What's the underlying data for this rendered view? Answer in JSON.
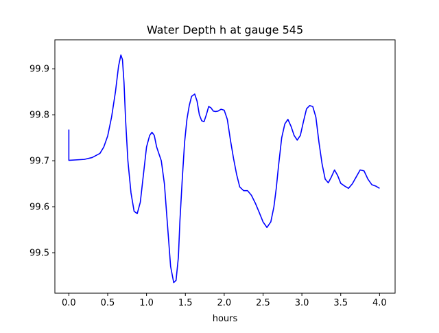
{
  "chart_data": {
    "type": "line",
    "title": "Water Depth h at gauge 545",
    "xlabel": "hours",
    "ylabel": "",
    "xlim": [
      -0.18,
      4.2
    ],
    "ylim": [
      99.412,
      99.963
    ],
    "x_ticks": [
      0.0,
      0.5,
      1.0,
      1.5,
      2.0,
      2.5,
      3.0,
      3.5,
      4.0
    ],
    "x_tick_labels": [
      "0.0",
      "0.5",
      "1.0",
      "1.5",
      "2.0",
      "2.5",
      "3.0",
      "3.5",
      "4.0"
    ],
    "y_ticks": [
      99.5,
      99.6,
      99.7,
      99.8,
      99.9
    ],
    "y_tick_labels": [
      "99.5",
      "99.6",
      "99.7",
      "99.8",
      "99.9"
    ],
    "grid": false,
    "legend": "none",
    "series": [
      {
        "color": "#0000ff",
        "x": [
          0.0,
          0.0,
          0.01,
          0.2,
          0.3,
          0.4,
          0.45,
          0.5,
          0.55,
          0.6,
          0.64,
          0.67,
          0.69,
          0.71,
          0.73,
          0.76,
          0.8,
          0.84,
          0.88,
          0.92,
          0.96,
          1.0,
          1.04,
          1.07,
          1.1,
          1.13,
          1.16,
          1.19,
          1.23,
          1.27,
          1.31,
          1.35,
          1.38,
          1.41,
          1.43,
          1.46,
          1.49,
          1.52,
          1.55,
          1.58,
          1.62,
          1.65,
          1.68,
          1.71,
          1.74,
          1.77,
          1.8,
          1.83,
          1.86,
          1.89,
          1.92,
          1.96,
          2.0,
          2.04,
          2.08,
          2.12,
          2.16,
          2.2,
          2.25,
          2.3,
          2.35,
          2.4,
          2.45,
          2.5,
          2.55,
          2.6,
          2.64,
          2.67,
          2.7,
          2.74,
          2.78,
          2.82,
          2.86,
          2.9,
          2.94,
          2.98,
          3.02,
          3.06,
          3.1,
          3.14,
          3.18,
          3.22,
          3.26,
          3.3,
          3.34,
          3.38,
          3.42,
          3.46,
          3.5,
          3.55,
          3.6,
          3.65,
          3.7,
          3.75,
          3.8,
          3.85,
          3.9,
          3.95,
          4.0
        ],
        "y": [
          99.768,
          99.701,
          99.701,
          99.703,
          99.707,
          99.716,
          99.73,
          99.754,
          99.795,
          99.85,
          99.906,
          99.93,
          99.92,
          99.87,
          99.79,
          99.7,
          99.63,
          99.59,
          99.585,
          99.61,
          99.67,
          99.73,
          99.755,
          99.762,
          99.755,
          99.73,
          99.715,
          99.7,
          99.65,
          99.56,
          99.47,
          99.435,
          99.44,
          99.49,
          99.57,
          99.66,
          99.74,
          99.79,
          99.82,
          99.84,
          99.845,
          99.83,
          99.8,
          99.787,
          99.785,
          99.8,
          99.818,
          99.815,
          99.808,
          99.807,
          99.808,
          99.812,
          99.81,
          99.79,
          99.745,
          99.705,
          99.67,
          99.643,
          99.635,
          99.635,
          99.625,
          99.608,
          99.588,
          99.567,
          99.555,
          99.567,
          99.6,
          99.64,
          99.69,
          99.75,
          99.78,
          99.79,
          99.775,
          99.755,
          99.745,
          99.755,
          99.785,
          99.813,
          99.82,
          99.818,
          99.795,
          99.74,
          99.693,
          99.66,
          99.652,
          99.665,
          99.68,
          99.668,
          99.651,
          99.645,
          99.64,
          99.65,
          99.665,
          99.68,
          99.678,
          99.66,
          99.648,
          99.645,
          99.64
        ]
      }
    ]
  }
}
